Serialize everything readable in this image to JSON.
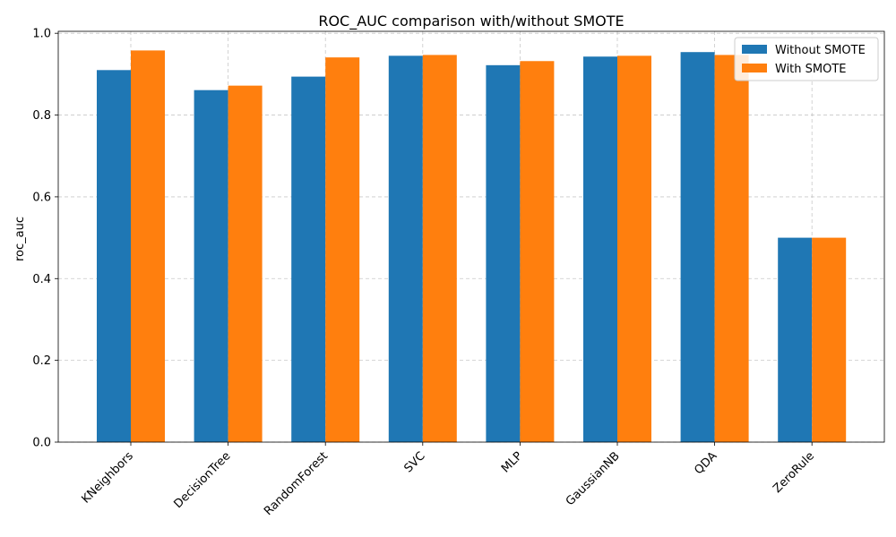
{
  "chart_data": {
    "type": "bar",
    "title": "ROC_AUC comparison with/without SMOTE",
    "xlabel": "",
    "ylabel": "roc_auc",
    "ylim": [
      0,
      1.0
    ],
    "yticks": [
      "0.0",
      "0.2",
      "0.4",
      "0.6",
      "0.8",
      "1.0"
    ],
    "grid": true,
    "legend_position": "top-right",
    "categories": [
      "KNeighbors",
      "DecisionTree",
      "RandomForest",
      "SVC",
      "MLP",
      "GaussianNB",
      "QDA",
      "ZeroRule"
    ],
    "series": [
      {
        "name": "Without SMOTE",
        "color": "#1f77b4",
        "values": [
          0.91,
          0.861,
          0.894,
          0.945,
          0.922,
          0.943,
          0.954,
          0.5
        ]
      },
      {
        "name": "With SMOTE",
        "color": "#ff7f0e",
        "values": [
          0.958,
          0.872,
          0.941,
          0.947,
          0.932,
          0.945,
          0.947,
          0.5
        ]
      }
    ]
  }
}
